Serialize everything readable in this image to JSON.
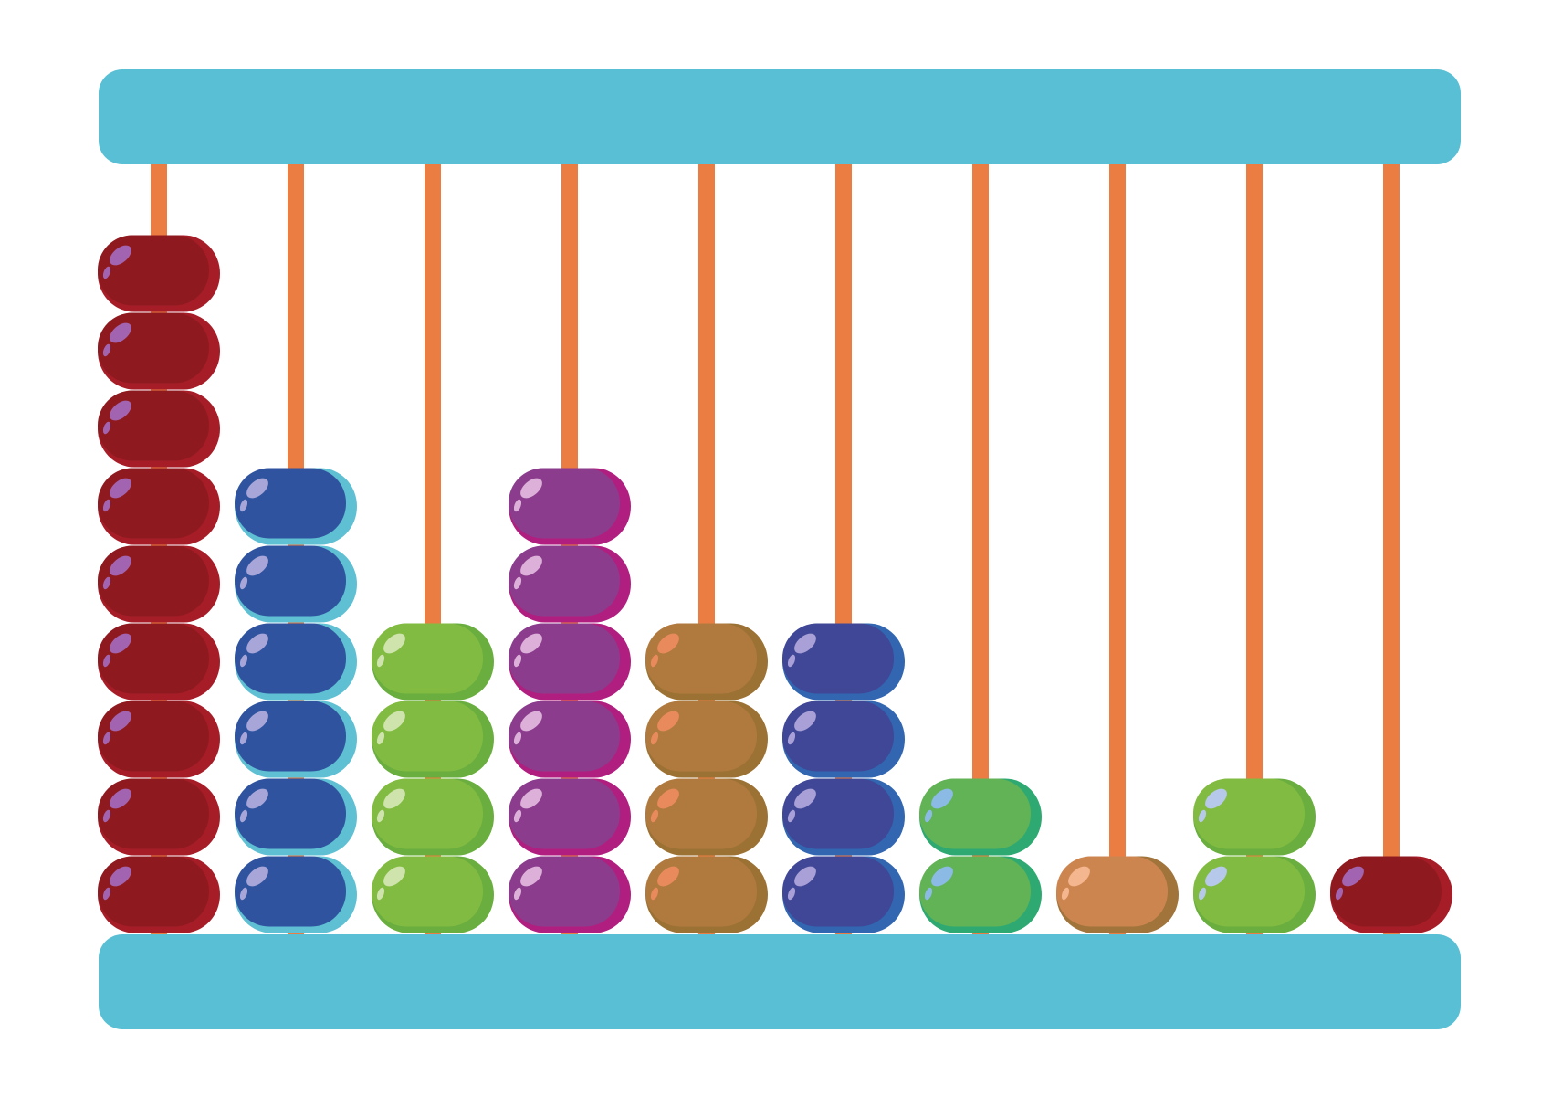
{
  "abacus": {
    "frame_color": "#58bfd4",
    "rod_color": "#ec7d42",
    "rods": [
      {
        "beads": 9,
        "color": "#8e1a1f",
        "rim": "#a61d28",
        "highlight": "#a264b0"
      },
      {
        "beads": 6,
        "color": "#2f539e",
        "rim": "#5fbfd3",
        "highlight": "#a8a6d8"
      },
      {
        "beads": 4,
        "color": "#82bb41",
        "rim": "#6aae3f",
        "highlight": "#cfe3ad"
      },
      {
        "beads": 6,
        "color": "#8b3c8d",
        "rim": "#b01f7f",
        "highlight": "#dcb0d8"
      },
      {
        "beads": 4,
        "color": "#b07a3f",
        "rim": "#9c7234",
        "highlight": "#e98a5d"
      },
      {
        "beads": 4,
        "color": "#3f4796",
        "rim": "#3266b0",
        "highlight": "#a8a0d6"
      },
      {
        "beads": 2,
        "color": "#62b256",
        "rim": "#2fa972",
        "highlight": "#8bbbe4"
      },
      {
        "beads": 1,
        "color": "#cd8550",
        "rim": "#a0743b",
        "highlight": "#f4b68f"
      },
      {
        "beads": 2,
        "color": "#82bb41",
        "rim": "#6aae3f",
        "highlight": "#b7c9ea"
      },
      {
        "beads": 1,
        "color": "#8e1a1f",
        "rim": "#a61d28",
        "highlight": "#a264b0"
      }
    ]
  }
}
